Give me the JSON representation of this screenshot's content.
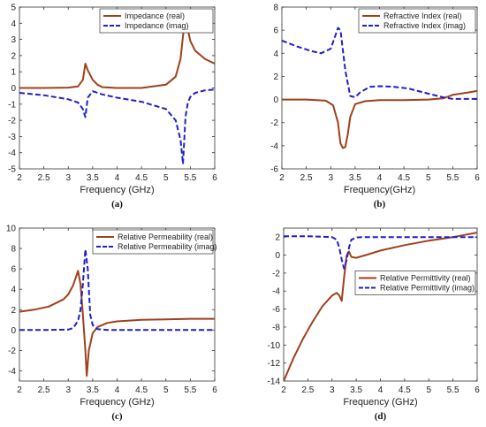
{
  "chart_data": [
    {
      "type": "line",
      "caption": "(a)",
      "xlabel": "Frequency (GHz)",
      "ylabel": "",
      "xlim": [
        2,
        6
      ],
      "ylim": [
        -5,
        5
      ],
      "xticks": [
        "2",
        "2.5",
        "3",
        "3.5",
        "4",
        "4.5",
        "5",
        "5.5",
        "6"
      ],
      "yticks": [
        "-5",
        "-4",
        "-3",
        "-2",
        "-1",
        "0",
        "1",
        "2",
        "3",
        "4",
        "5"
      ],
      "legend_position": "top-right",
      "series": [
        {
          "name": "Impedance (real)",
          "color": "#a0401c",
          "style": "solid",
          "x": [
            2.0,
            2.5,
            3.0,
            3.2,
            3.3,
            3.35,
            3.4,
            3.5,
            3.6,
            3.7,
            4.0,
            4.5,
            5.0,
            5.2,
            5.3,
            5.35,
            5.4,
            5.45,
            5.5,
            5.6,
            5.8,
            6.0
          ],
          "y": [
            0.0,
            0.0,
            0.02,
            0.1,
            0.5,
            1.5,
            1.1,
            0.5,
            0.2,
            0.05,
            0.0,
            0.0,
            0.2,
            0.7,
            1.8,
            3.2,
            4.5,
            3.6,
            2.9,
            2.3,
            1.8,
            1.5
          ]
        },
        {
          "name": "Impedance (imag)",
          "color": "#1f1fcc",
          "style": "dashed",
          "x": [
            2.0,
            2.5,
            3.0,
            3.2,
            3.3,
            3.35,
            3.4,
            3.5,
            3.6,
            3.7,
            4.0,
            4.5,
            5.0,
            5.2,
            5.3,
            5.35,
            5.4,
            5.45,
            5.5,
            5.6,
            5.8,
            6.0
          ],
          "y": [
            -0.3,
            -0.45,
            -0.7,
            -0.9,
            -1.3,
            -1.8,
            -0.6,
            -0.2,
            -0.3,
            -0.4,
            -0.6,
            -0.85,
            -1.3,
            -2.0,
            -3.2,
            -4.7,
            -1.8,
            -0.9,
            -0.55,
            -0.3,
            -0.15,
            -0.1
          ]
        }
      ]
    },
    {
      "type": "line",
      "caption": "(b)",
      "xlabel": "Frequency(GHz)",
      "ylabel": "",
      "xlim": [
        2,
        6
      ],
      "ylim": [
        -6,
        8
      ],
      "xticks": [
        "2",
        "2.5",
        "3",
        "3.5",
        "4",
        "4.5",
        "5",
        "5.5",
        "6"
      ],
      "yticks": [
        "-6",
        "-4",
        "-2",
        "0",
        "2",
        "4",
        "6",
        "8"
      ],
      "legend_position": "top-right",
      "series": [
        {
          "name": "Refractive Index (real)",
          "color": "#a0401c",
          "style": "solid",
          "x": [
            2.0,
            2.5,
            2.9,
            3.05,
            3.15,
            3.2,
            3.25,
            3.3,
            3.35,
            3.4,
            3.5,
            3.7,
            4.0,
            4.5,
            5.0,
            5.3,
            5.5,
            5.8,
            6.0
          ],
          "y": [
            0.0,
            0.0,
            -0.1,
            -0.5,
            -2.0,
            -3.8,
            -4.2,
            -4.1,
            -3.0,
            -1.5,
            -0.4,
            -0.15,
            -0.05,
            -0.05,
            0.0,
            0.1,
            0.4,
            0.6,
            0.75
          ]
        },
        {
          "name": "Refractive Index (imag)",
          "color": "#1f1fcc",
          "style": "dashed",
          "x": [
            2.0,
            2.3,
            2.6,
            2.8,
            3.0,
            3.1,
            3.15,
            3.2,
            3.3,
            3.4,
            3.5,
            3.6,
            3.8,
            4.0,
            4.3,
            4.6,
            5.0,
            5.3,
            5.5,
            5.8,
            6.0
          ],
          "y": [
            5.1,
            4.6,
            4.2,
            4.0,
            4.4,
            5.6,
            6.2,
            6.0,
            2.5,
            0.3,
            0.2,
            0.6,
            1.1,
            1.15,
            1.1,
            0.95,
            0.5,
            0.2,
            0.05,
            0.05,
            0.05
          ]
        }
      ]
    },
    {
      "type": "line",
      "caption": "(c)",
      "xlabel": "Frequency (GHz)",
      "ylabel": "",
      "xlim": [
        2,
        6
      ],
      "ylim": [
        -5,
        10
      ],
      "xticks": [
        "2",
        "2.5",
        "3",
        "3.5",
        "4",
        "4.5",
        "5",
        "5.5",
        "6"
      ],
      "yticks": [
        "-4",
        "-2",
        "0",
        "2",
        "4",
        "6",
        "8",
        "10"
      ],
      "legend_position": "top-right",
      "series": [
        {
          "name": "Relative Permeability (real)",
          "color": "#a0401c",
          "style": "solid",
          "x": [
            2.0,
            2.3,
            2.6,
            2.9,
            3.0,
            3.1,
            3.2,
            3.25,
            3.3,
            3.35,
            3.38,
            3.42,
            3.5,
            3.6,
            3.8,
            4.0,
            4.5,
            5.0,
            5.5,
            6.0
          ],
          "y": [
            1.8,
            2.0,
            2.3,
            3.0,
            3.5,
            4.4,
            5.8,
            4.5,
            1.5,
            -2.0,
            -4.5,
            -2.0,
            -0.3,
            0.3,
            0.7,
            0.85,
            1.0,
            1.05,
            1.1,
            1.1
          ]
        },
        {
          "name": "Relative Permeability (imag)",
          "color": "#1f1fcc",
          "style": "dashed",
          "x": [
            2.0,
            2.5,
            3.0,
            3.1,
            3.2,
            3.25,
            3.3,
            3.35,
            3.4,
            3.45,
            3.5,
            3.6,
            3.8,
            4.0,
            5.0,
            6.0
          ],
          "y": [
            0.0,
            0.0,
            0.05,
            0.2,
            0.9,
            2.0,
            4.5,
            7.9,
            6.0,
            1.5,
            0.5,
            0.1,
            0.0,
            0.0,
            0.0,
            0.0
          ]
        }
      ]
    },
    {
      "type": "line",
      "caption": "(d)",
      "xlabel": "Frequency (GHz)",
      "ylabel": "",
      "xlim": [
        2,
        6
      ],
      "ylim": [
        -14,
        3
      ],
      "xticks": [
        "2",
        "2.5",
        "3",
        "3.5",
        "4",
        "4.5",
        "5",
        "5.5",
        "6"
      ],
      "yticks": [
        "-14",
        "-12",
        "-10",
        "-8",
        "-6",
        "-4",
        "-2",
        "0",
        "2"
      ],
      "legend_position": "right",
      "series": [
        {
          "name": "Relative Permittivity (real)",
          "color": "#a0401c",
          "style": "solid",
          "x": [
            2.0,
            2.2,
            2.4,
            2.6,
            2.8,
            3.0,
            3.1,
            3.15,
            3.2,
            3.25,
            3.3,
            3.35,
            3.4,
            3.5,
            3.7,
            4.0,
            4.5,
            5.0,
            5.5,
            6.0
          ],
          "y": [
            -14.0,
            -11.5,
            -9.3,
            -7.4,
            -5.7,
            -4.5,
            -4.2,
            -4.5,
            -5.1,
            -2.5,
            -0.1,
            0.4,
            -0.2,
            -0.3,
            0.0,
            0.5,
            1.1,
            1.6,
            2.0,
            2.5
          ]
        },
        {
          "name": "Relative Permittivity (imag)",
          "color": "#1f1fcc",
          "style": "dashed",
          "x": [
            2.0,
            2.5,
            3.0,
            3.1,
            3.15,
            3.2,
            3.25,
            3.3,
            3.35,
            3.4,
            3.5,
            3.6,
            4.0,
            4.5,
            5.0,
            5.5,
            6.0
          ],
          "y": [
            2.1,
            2.1,
            2.0,
            1.7,
            0.8,
            -0.5,
            -1.5,
            -0.6,
            0.8,
            1.7,
            1.95,
            2.0,
            2.0,
            2.0,
            2.0,
            2.0,
            2.0
          ]
        }
      ]
    }
  ]
}
